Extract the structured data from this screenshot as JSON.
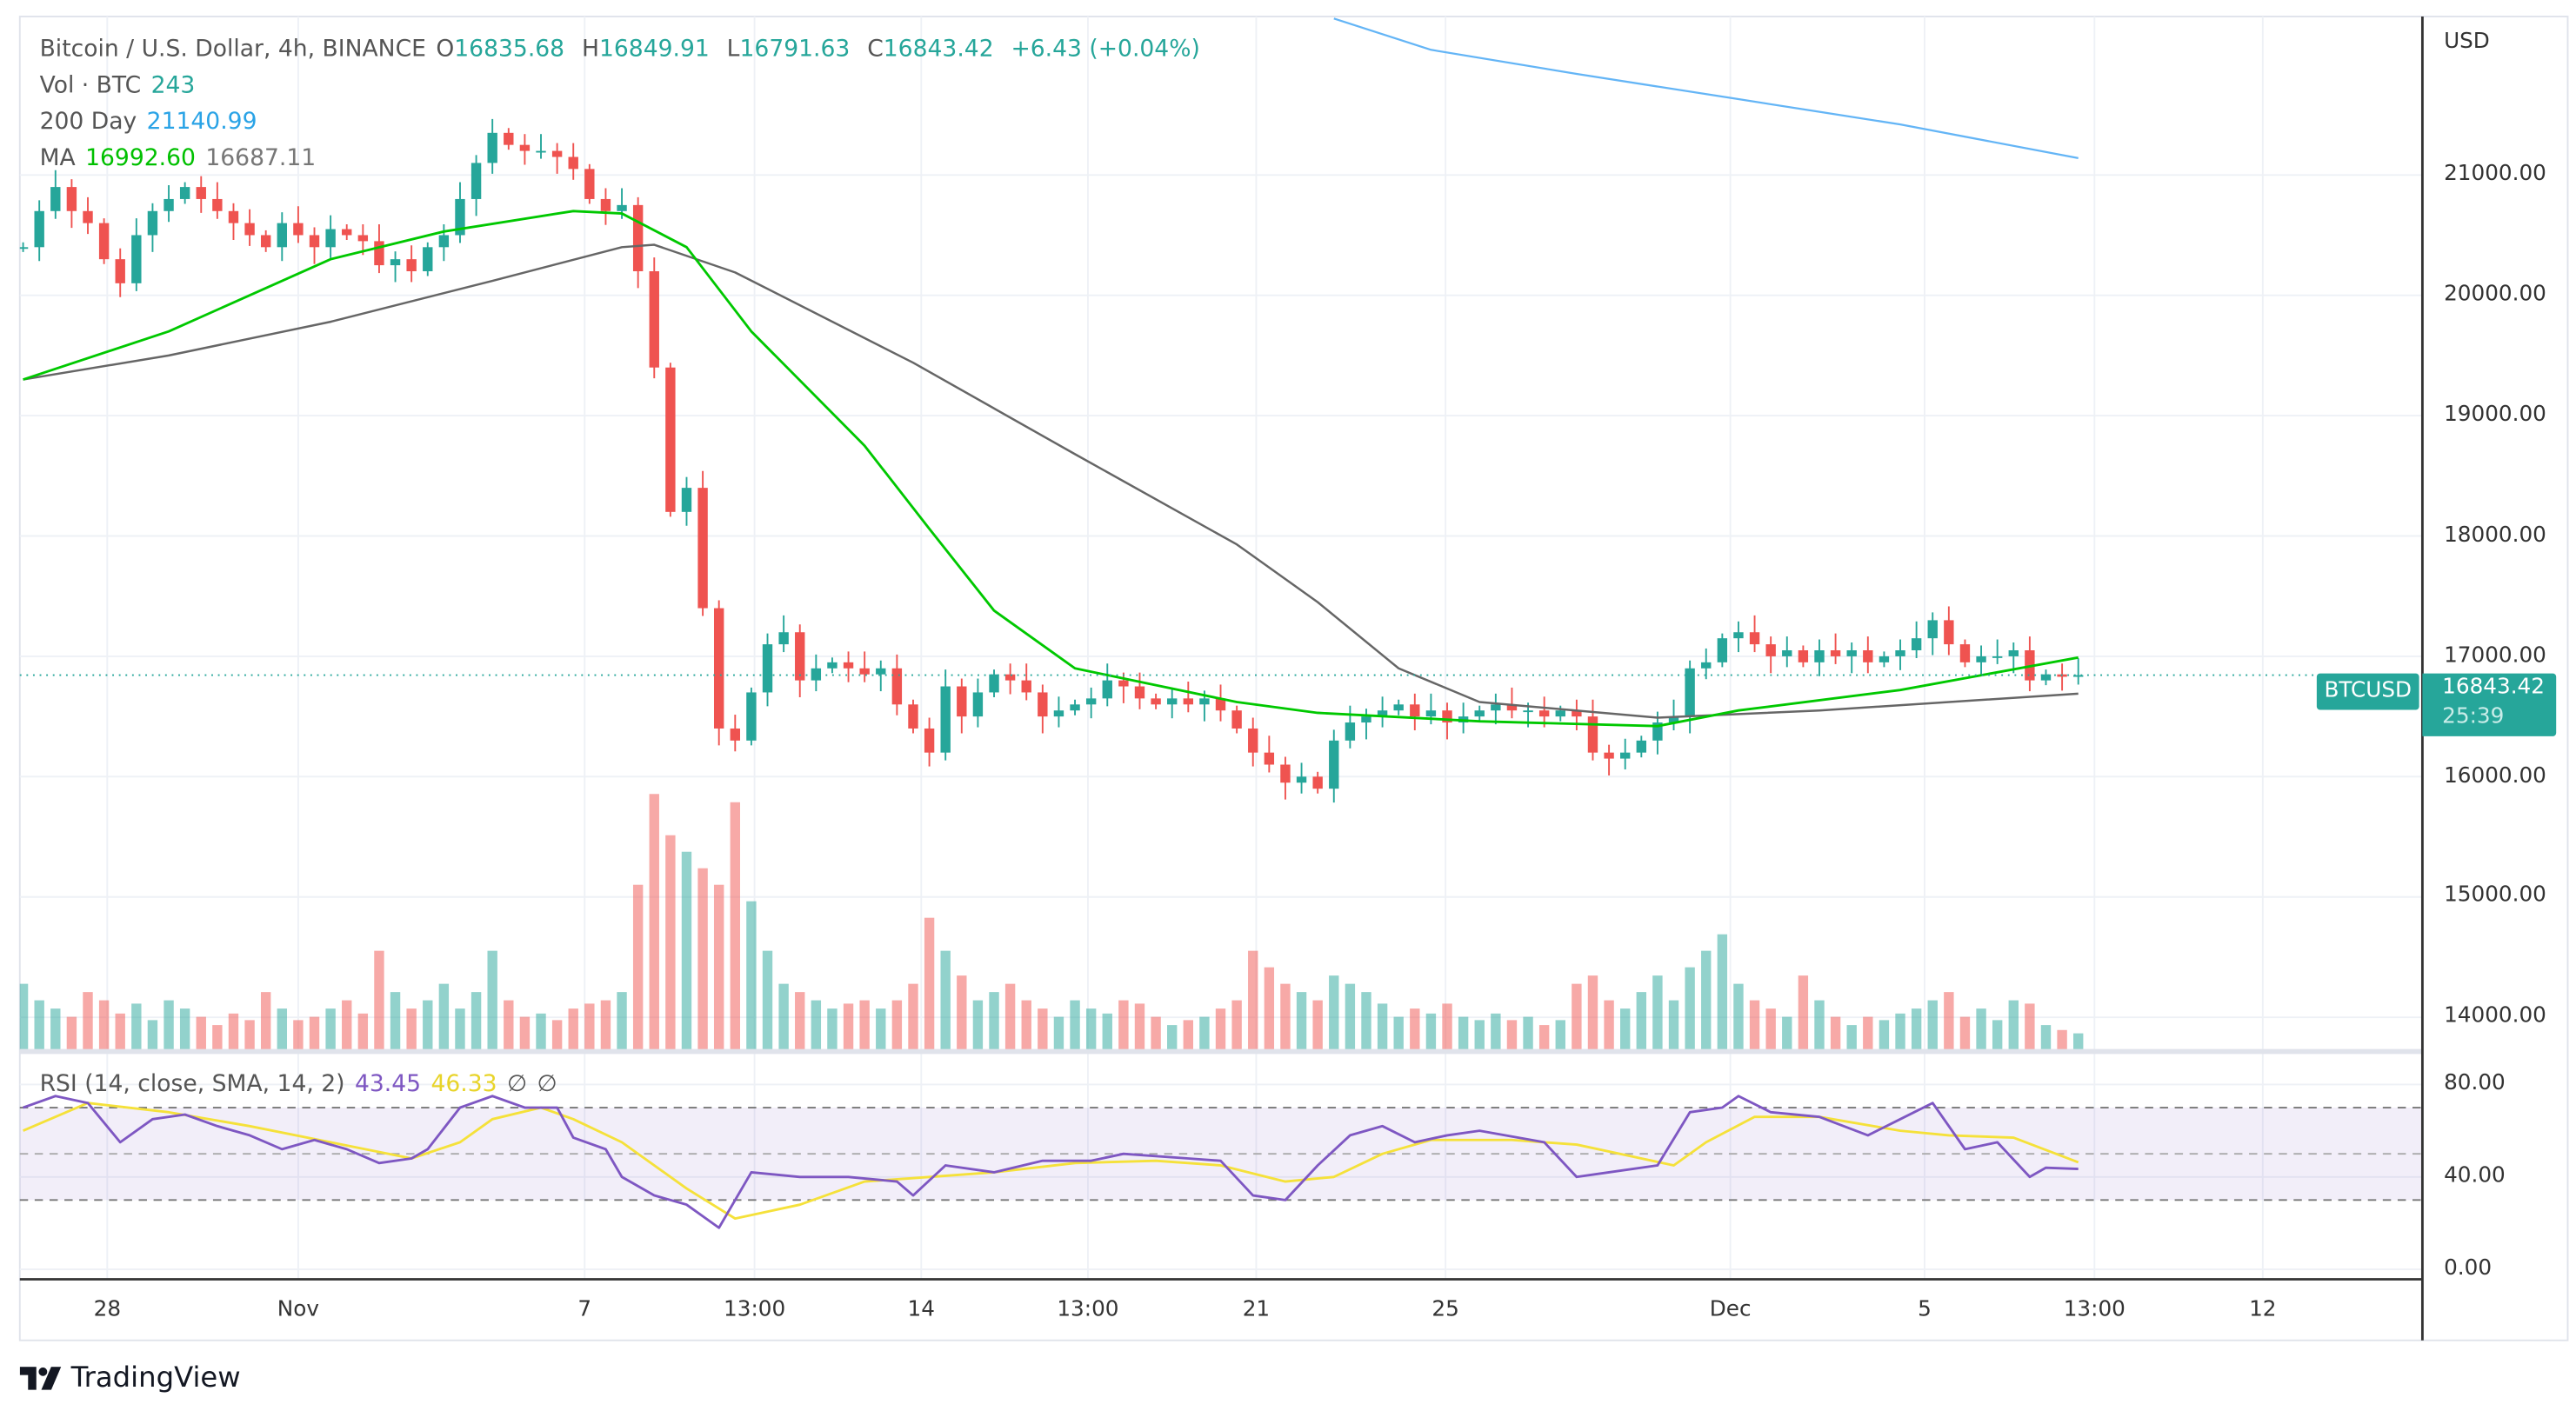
{
  "legend": {
    "symbol": "Bitcoin / U.S. Dollar, 4h, BINANCE",
    "o_label": "O",
    "o": "16835.68",
    "h_label": "H",
    "h": "16849.91",
    "l_label": "L",
    "l": "16791.63",
    "c_label": "C",
    "c": "16843.42",
    "change": "+6.43 (+0.04%)",
    "vol_label": "Vol · BTC",
    "vol": "243",
    "ma200_label": "200 Day",
    "ma200": "21140.99",
    "ma_label": "MA",
    "ma_fast": "16992.60",
    "ma_slow": "16687.11",
    "rsi_label": "RSI (14, close, SMA, 14, 2)",
    "rsi": "43.45",
    "rsi_sma": "46.33",
    "rsi_na1": "∅",
    "rsi_na2": "∅"
  },
  "price_axis": {
    "currency": "USD",
    "ticks": [
      "21000.00",
      "20000.00",
      "19000.00",
      "18000.00",
      "17000.00",
      "16000.00",
      "15000.00",
      "14000.00"
    ]
  },
  "rsi_axis": {
    "ticks": [
      "80.00",
      "40.00",
      "0.00"
    ]
  },
  "last_price": {
    "symbol": "BTCUSD",
    "price": "16843.42",
    "countdown": "25:39"
  },
  "brand": "TradingView",
  "colors": {
    "up": "#26a69a",
    "down": "#ef5350",
    "ma_fast": "#00c800",
    "ma_slow": "#666666",
    "ma200": "#64b5f6",
    "rsi": "#7e57c2",
    "rsi_sma": "#f5e13a"
  },
  "chart_data": {
    "type": "candlestick",
    "title": "Bitcoin / U.S. Dollar, 4h, BINANCE",
    "ylim": [
      13700,
      21500
    ],
    "x_unit": "bar index (8h sampled)",
    "time_ticks": [
      {
        "label": "28",
        "x": 5.2
      },
      {
        "label": "Nov",
        "x": 17
      },
      {
        "label": "7",
        "x": 34.7
      },
      {
        "label": "13:00",
        "x": 45.2
      },
      {
        "label": "14",
        "x": 55.5
      },
      {
        "label": "13:00",
        "x": 65.8
      },
      {
        "label": "21",
        "x": 76.2
      },
      {
        "label": "25",
        "x": 87.9
      },
      {
        "label": "Dec",
        "x": 105.5
      },
      {
        "label": "5",
        "x": 117.5
      },
      {
        "label": "13:00",
        "x": 128
      },
      {
        "label": "12",
        "x": 138.4
      }
    ],
    "closes": [
      20400,
      20700,
      20900,
      20700,
      20600,
      20300,
      20100,
      20500,
      20700,
      20800,
      20900,
      20800,
      20700,
      20600,
      20500,
      20400,
      20600,
      20500,
      20400,
      20550,
      20500,
      20450,
      20250,
      20300,
      20200,
      20400,
      20500,
      20800,
      21100,
      21350,
      21250,
      21200,
      21200,
      21150,
      21050,
      20800,
      20700,
      20750,
      20200,
      19400,
      18200,
      18400,
      17400,
      16400,
      16300,
      16700,
      17100,
      17200,
      16800,
      16900,
      16950,
      16900,
      16850,
      16900,
      16600,
      16400,
      16200,
      16750,
      16500,
      16700,
      16850,
      16800,
      16700,
      16500,
      16550,
      16600,
      16650,
      16800,
      16750,
      16650,
      16600,
      16650,
      16600,
      16650,
      16550,
      16400,
      16200,
      16100,
      15950,
      16000,
      15900,
      16300,
      16450,
      16500,
      16550,
      16600,
      16500,
      16550,
      16450,
      16500,
      16550,
      16600,
      16550,
      16550,
      16500,
      16550,
      16500,
      16200,
      16150,
      16200,
      16300,
      16450,
      16500,
      16900,
      16950,
      17150,
      17200,
      17100,
      17000,
      17050,
      16950,
      17050,
      17000,
      17050,
      16950,
      17000,
      17050,
      17150,
      17300,
      17100,
      16950,
      17000,
      17000,
      17050,
      16800,
      16850,
      16830,
      16843.42
    ],
    "volumes": [
      40,
      30,
      25,
      20,
      35,
      30,
      22,
      28,
      18,
      30,
      25,
      20,
      15,
      22,
      18,
      35,
      25,
      18,
      20,
      25,
      30,
      22,
      60,
      35,
      25,
      30,
      40,
      25,
      35,
      60,
      30,
      20,
      22,
      18,
      25,
      28,
      30,
      35,
      100,
      155,
      130,
      120,
      110,
      100,
      150,
      90,
      60,
      40,
      35,
      30,
      25,
      28,
      30,
      25,
      30,
      40,
      80,
      60,
      45,
      30,
      35,
      40,
      30,
      25,
      20,
      30,
      25,
      22,
      30,
      28,
      20,
      15,
      18,
      20,
      25,
      30,
      60,
      50,
      40,
      35,
      30,
      45,
      40,
      35,
      28,
      20,
      25,
      22,
      28,
      20,
      18,
      22,
      18,
      20,
      15,
      18,
      40,
      45,
      30,
      25,
      35,
      45,
      30,
      50,
      60,
      70,
      40,
      30,
      25,
      20,
      45,
      30,
      20,
      15,
      20,
      18,
      22,
      25,
      30,
      35,
      20,
      25,
      18,
      30,
      28,
      15,
      12,
      10
    ],
    "ma_fast": [
      [
        0,
        19300
      ],
      [
        9,
        19700
      ],
      [
        19,
        20300
      ],
      [
        26,
        20530
      ],
      [
        34,
        20700
      ],
      [
        37,
        20680
      ],
      [
        41,
        20400
      ],
      [
        45,
        19700
      ],
      [
        52,
        18750
      ],
      [
        56,
        18060
      ],
      [
        60,
        17380
      ],
      [
        65,
        16900
      ],
      [
        70,
        16760
      ],
      [
        75,
        16620
      ],
      [
        80,
        16530
      ],
      [
        90,
        16460
      ],
      [
        101,
        16420
      ],
      [
        106,
        16550
      ],
      [
        116,
        16720
      ],
      [
        127,
        16990
      ]
    ],
    "ma_slow": [
      [
        0,
        19300
      ],
      [
        9,
        19500
      ],
      [
        19,
        19780
      ],
      [
        29,
        20120
      ],
      [
        37,
        20400
      ],
      [
        39,
        20420
      ],
      [
        44,
        20190
      ],
      [
        55,
        19440
      ],
      [
        65,
        18680
      ],
      [
        75,
        17930
      ],
      [
        80,
        17450
      ],
      [
        85,
        16900
      ],
      [
        90,
        16620
      ],
      [
        101,
        16490
      ],
      [
        111,
        16550
      ],
      [
        127,
        16690
      ]
    ],
    "ma200": [
      [
        81,
        22300
      ],
      [
        87,
        22040
      ],
      [
        96,
        21840
      ],
      [
        106,
        21630
      ],
      [
        116,
        21420
      ],
      [
        127,
        21140
      ]
    ],
    "rsi": [
      [
        0,
        70
      ],
      [
        2,
        75
      ],
      [
        4,
        72
      ],
      [
        6,
        55
      ],
      [
        8,
        65
      ],
      [
        10,
        67
      ],
      [
        12,
        62
      ],
      [
        14,
        58
      ],
      [
        16,
        52
      ],
      [
        18,
        56
      ],
      [
        20,
        52
      ],
      [
        22,
        46
      ],
      [
        24,
        48
      ],
      [
        25,
        52
      ],
      [
        27,
        70
      ],
      [
        29,
        75
      ],
      [
        31,
        70
      ],
      [
        33,
        70
      ],
      [
        34,
        57
      ],
      [
        36,
        52
      ],
      [
        37,
        40
      ],
      [
        39,
        32
      ],
      [
        41,
        28
      ],
      [
        43,
        18
      ],
      [
        45,
        42
      ],
      [
        48,
        40
      ],
      [
        51,
        40
      ],
      [
        54,
        38
      ],
      [
        55,
        32
      ],
      [
        57,
        45
      ],
      [
        60,
        42
      ],
      [
        63,
        47
      ],
      [
        66,
        47
      ],
      [
        68,
        50
      ],
      [
        72,
        48
      ],
      [
        74,
        47
      ],
      [
        76,
        32
      ],
      [
        78,
        30
      ],
      [
        80,
        45
      ],
      [
        82,
        58
      ],
      [
        84,
        62
      ],
      [
        86,
        55
      ],
      [
        88,
        58
      ],
      [
        90,
        60
      ],
      [
        94,
        55
      ],
      [
        96,
        40
      ],
      [
        98,
        42
      ],
      [
        101,
        45
      ],
      [
        103,
        68
      ],
      [
        105,
        70
      ],
      [
        106,
        75
      ],
      [
        108,
        68
      ],
      [
        111,
        66
      ],
      [
        114,
        58
      ],
      [
        116,
        65
      ],
      [
        118,
        72
      ],
      [
        120,
        52
      ],
      [
        122,
        55
      ],
      [
        124,
        40
      ],
      [
        125,
        44
      ],
      [
        127,
        43.45
      ]
    ],
    "rsi_sma": [
      [
        0,
        60
      ],
      [
        4,
        72
      ],
      [
        9,
        68
      ],
      [
        14,
        62
      ],
      [
        19,
        55
      ],
      [
        24,
        48
      ],
      [
        27,
        55
      ],
      [
        29,
        65
      ],
      [
        32,
        70
      ],
      [
        34,
        65
      ],
      [
        37,
        55
      ],
      [
        41,
        35
      ],
      [
        44,
        22
      ],
      [
        48,
        28
      ],
      [
        52,
        38
      ],
      [
        56,
        40
      ],
      [
        60,
        42
      ],
      [
        65,
        46
      ],
      [
        70,
        47
      ],
      [
        74,
        45
      ],
      [
        78,
        38
      ],
      [
        81,
        40
      ],
      [
        84,
        50
      ],
      [
        87,
        56
      ],
      [
        92,
        56
      ],
      [
        96,
        54
      ],
      [
        100,
        48
      ],
      [
        102,
        45
      ],
      [
        104,
        55
      ],
      [
        107,
        66
      ],
      [
        111,
        66
      ],
      [
        116,
        60
      ],
      [
        119,
        58
      ],
      [
        123,
        57
      ],
      [
        127,
        46.33
      ]
    ],
    "rsi_bands": [
      30,
      50,
      70
    ],
    "rsi_ylim": [
      0,
      85
    ]
  }
}
